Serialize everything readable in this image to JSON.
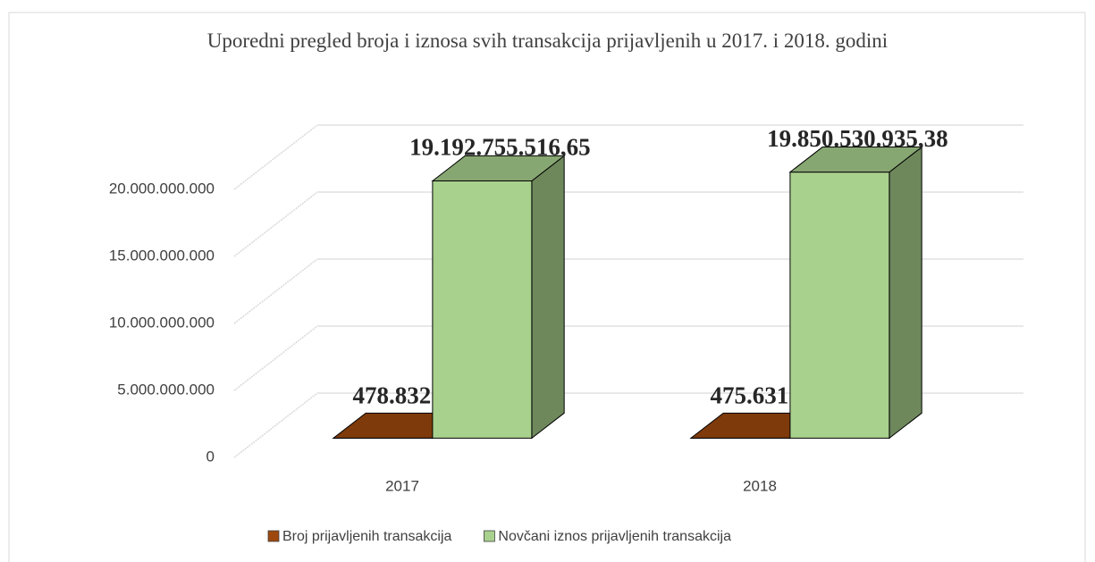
{
  "chart_data": {
    "type": "bar3d",
    "title": "Uporedni pregled broja i iznosa svih transakcija prijavljenih u 2017. i 2018. godini",
    "categories": [
      "2017",
      "2018"
    ],
    "series": [
      {
        "name": "Broj prijavljenih transakcija",
        "color": "#9e480e",
        "values": [
          478832,
          475631
        ],
        "value_labels": [
          "478.832",
          "475.631"
        ]
      },
      {
        "name": "Novčani iznos prijavljenih transakcija",
        "color": "#a9d18e",
        "values": [
          19192755516.65,
          19850530935.38
        ],
        "value_labels": [
          "19.192.755.516,65",
          "19.850.530.935,38"
        ]
      }
    ],
    "ylim": [
      0,
      20000000000
    ],
    "yticks": [
      0,
      {
        "value": 5000000000,
        "label": "5.000.000.000"
      },
      {
        "value": 10000000000,
        "label": "10.000.000.000"
      },
      {
        "value": 15000000000,
        "label": "15.000.000.000"
      },
      {
        "value": 20000000000,
        "label": "20.000.000.000"
      }
    ],
    "grid": true,
    "legend": "bottom"
  }
}
